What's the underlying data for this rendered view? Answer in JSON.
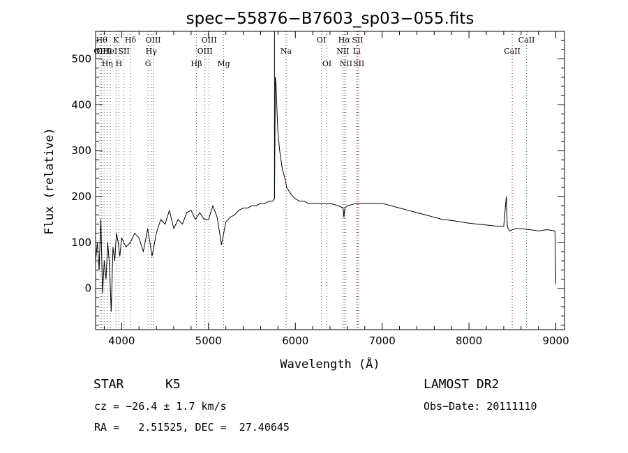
{
  "chart_data": {
    "type": "line",
    "title": "spec−55876−B7603_sp03−055.fits",
    "xlabel": "Wavelength (Å)",
    "ylabel": "Flux (relative)",
    "xlim": [
      3700,
      9100
    ],
    "ylim": [
      -90,
      560
    ],
    "xticks": [
      4000,
      5000,
      6000,
      7000,
      8000,
      9000
    ],
    "yticks": [
      0,
      100,
      200,
      300,
      400,
      500
    ],
    "grid": false,
    "colors": {
      "spectrum": "#000000",
      "lines": "#cc0000",
      "axes": "#000000"
    },
    "series": [
      {
        "x": [
          3700,
          3720,
          3740,
          3760,
          3780,
          3800,
          3820,
          3840,
          3860,
          3880,
          3900,
          3920,
          3940,
          3960,
          3980,
          4000,
          4050,
          4100,
          4150,
          4200,
          4250,
          4300,
          4350,
          4400,
          4450,
          4500,
          4550,
          4600,
          4650,
          4700,
          4750,
          4800,
          4850,
          4900,
          4950,
          5000,
          5050,
          5100,
          5150,
          5200,
          5250,
          5300,
          5350,
          5400,
          5450,
          5500,
          5550,
          5600,
          5650,
          5700,
          5740,
          5760,
          5770,
          5780,
          5790,
          5800,
          5820,
          5850,
          5880,
          5900,
          5950,
          6000,
          6050,
          6100,
          6150,
          6200,
          6300,
          6400,
          6500,
          6550,
          6560,
          6570,
          6600,
          6700,
          6800,
          6900,
          7000,
          7100,
          7200,
          7300,
          7400,
          7500,
          7600,
          7700,
          7800,
          7900,
          8000,
          8100,
          8200,
          8300,
          8400,
          8430,
          8440,
          8450,
          8470,
          8500,
          8540,
          8560,
          8600,
          8700,
          8800,
          8900,
          8990,
          9000
        ],
        "y": [
          60,
          100,
          40,
          150,
          -10,
          60,
          20,
          100,
          50,
          -50,
          90,
          60,
          120,
          100,
          70,
          110,
          90,
          100,
          120,
          110,
          80,
          130,
          70,
          120,
          150,
          140,
          170,
          130,
          150,
          140,
          165,
          170,
          150,
          165,
          150,
          150,
          180,
          155,
          95,
          145,
          155,
          160,
          170,
          175,
          175,
          180,
          180,
          185,
          185,
          190,
          190,
          195,
          460,
          440,
          380,
          340,
          300,
          260,
          240,
          220,
          205,
          195,
          190,
          190,
          185,
          185,
          185,
          185,
          180,
          175,
          155,
          175,
          180,
          185,
          185,
          185,
          185,
          180,
          175,
          170,
          165,
          160,
          155,
          150,
          148,
          145,
          142,
          140,
          138,
          136,
          135,
          200,
          140,
          130,
          125,
          128,
          130,
          130,
          130,
          128,
          125,
          128,
          125,
          10
        ]
      }
    ],
    "line_markers": [
      {
        "w": 3750,
        "label": "OII",
        "row": 1,
        "style": "dotted"
      },
      {
        "w": 3770,
        "label": "Hθ",
        "row": 0,
        "style": "dotted"
      },
      {
        "w": 3798,
        "label": "OIII",
        "row": 1,
        "style": "dotted"
      },
      {
        "w": 3835,
        "label": "Hη",
        "row": 2,
        "style": "dotted"
      },
      {
        "w": 3869,
        "label": "HeI",
        "row": 1,
        "style": "dotted"
      },
      {
        "w": 3934,
        "label": "K",
        "row": 0,
        "style": "dotted"
      },
      {
        "w": 3969,
        "label": "H",
        "row": 2,
        "style": "dotted"
      },
      {
        "w": 4026,
        "label": "SII",
        "row": 1,
        "style": "dotted"
      },
      {
        "w": 4102,
        "label": "Hδ",
        "row": 0,
        "style": "dotted"
      },
      {
        "w": 4304,
        "label": "G",
        "row": 2,
        "style": "dotted"
      },
      {
        "w": 4341,
        "label": "Hγ",
        "row": 1,
        "style": "dotted"
      },
      {
        "w": 4363,
        "label": "OIII",
        "row": 0,
        "style": "dotted"
      },
      {
        "w": 4861,
        "label": "Hβ",
        "row": 2,
        "style": "dotted"
      },
      {
        "w": 4959,
        "label": "OIII",
        "row": 1,
        "style": "dotted"
      },
      {
        "w": 5007,
        "label": "OIII",
        "row": 0,
        "style": "dotted"
      },
      {
        "w": 5175,
        "label": "Mg",
        "row": 2,
        "style": "dotted"
      },
      {
        "w": 5894,
        "label": "Na",
        "row": 1,
        "style": "red"
      },
      {
        "w": 6300,
        "label": "OI",
        "row": 0,
        "style": "dotted"
      },
      {
        "w": 6364,
        "label": "OI",
        "row": 2,
        "style": "dotted"
      },
      {
        "w": 6548,
        "label": "NII",
        "row": 1,
        "style": "dotted"
      },
      {
        "w": 6563,
        "label": "Hα",
        "row": 0,
        "style": "dotted"
      },
      {
        "w": 6583,
        "label": "NII",
        "row": 2,
        "style": "dotted"
      },
      {
        "w": 6708,
        "label": "Li",
        "row": 1,
        "style": "red"
      },
      {
        "w": 6717,
        "label": "SII",
        "row": 0,
        "style": "dotted"
      },
      {
        "w": 6731,
        "label": "SII",
        "row": 2,
        "style": "red"
      },
      {
        "w": 8498,
        "label": "CaII",
        "row": 1,
        "style": "red"
      },
      {
        "w": 8662,
        "label": "CaII",
        "row": 0,
        "style": "dotted"
      }
    ]
  },
  "footer": {
    "class": "STAR",
    "subclass": "K5",
    "survey": "LAMOST DR2",
    "cz": "cz = −26.4 ± 1.7 km/s",
    "obs_date": "Obs−Date: 20111110",
    "coords": "RA =   2.51525, DEC =  27.40645"
  }
}
